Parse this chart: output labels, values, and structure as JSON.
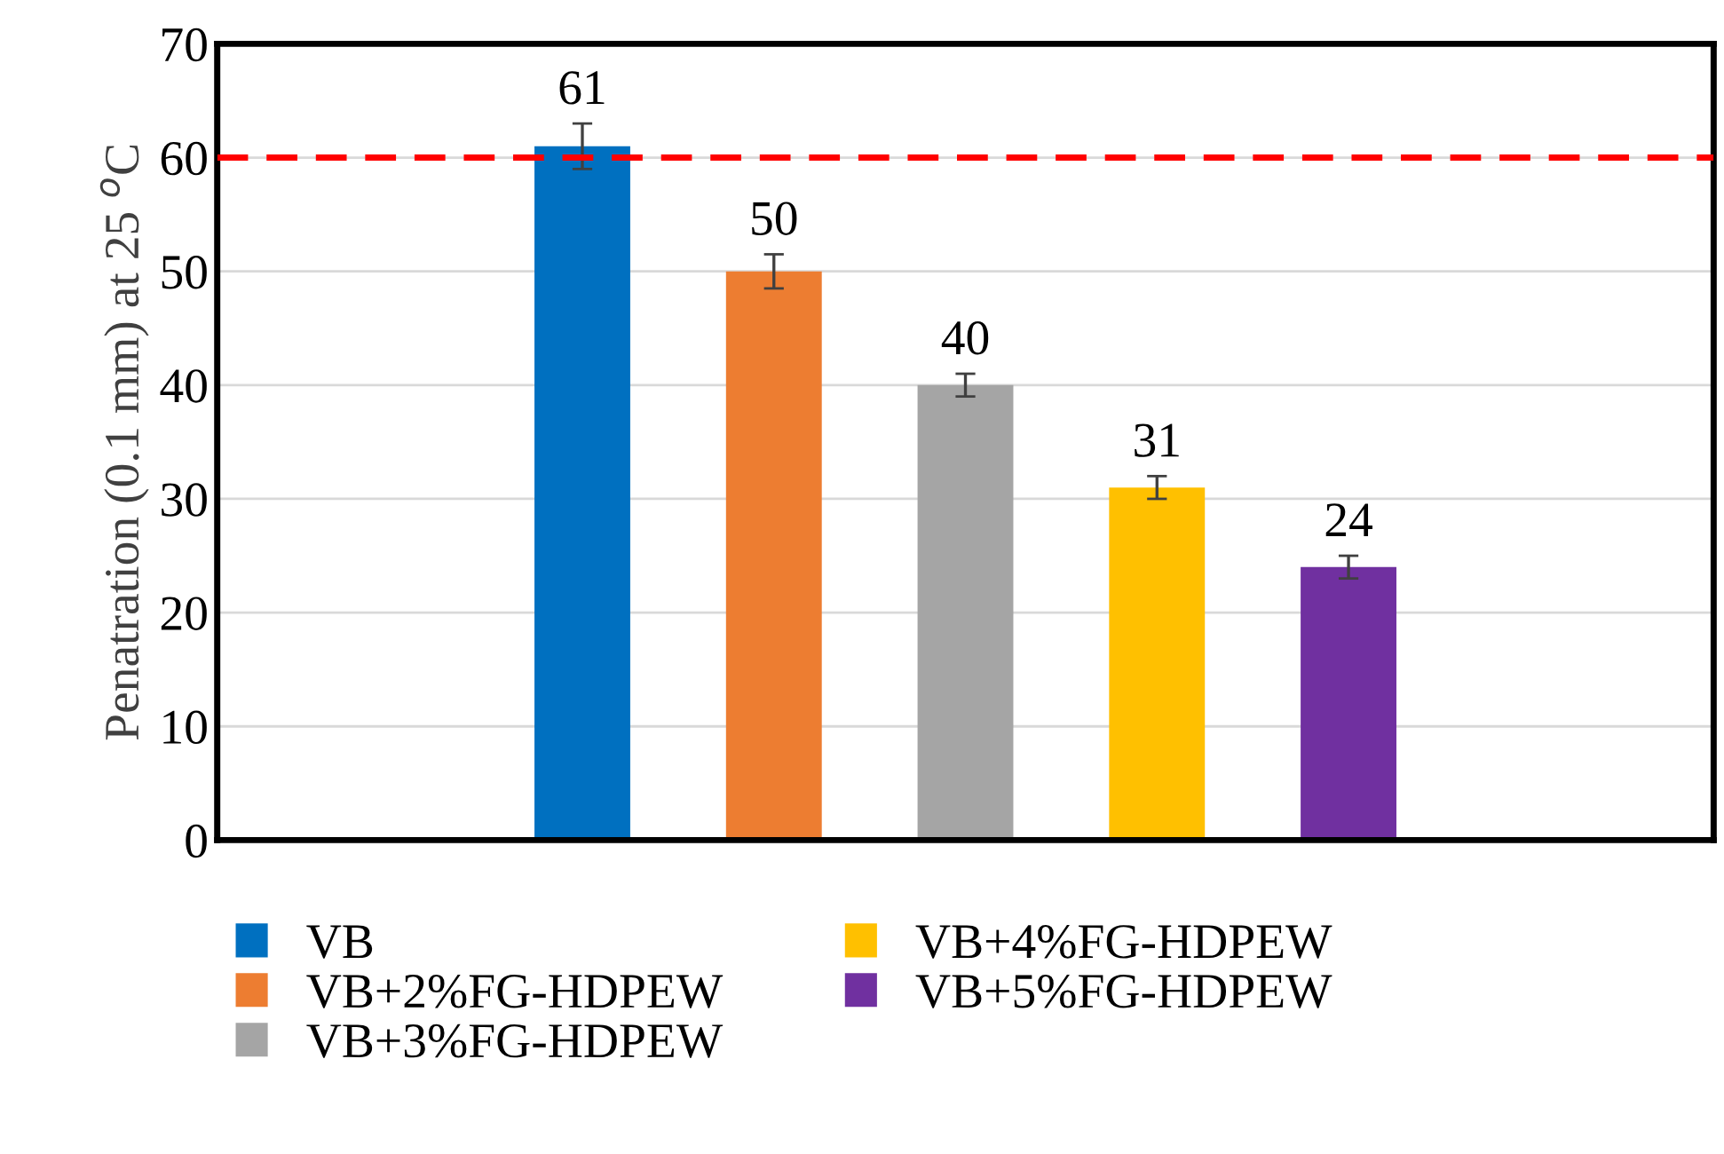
{
  "chart_data": {
    "type": "bar",
    "ylabel": "Penatration (0.1 mm) at 25 $^{o}$C",
    "categories": [
      null
    ],
    "series": [
      {
        "name": "VB",
        "color": "#0070c0",
        "values": [
          61
        ],
        "errors": [
          2
        ]
      },
      {
        "name": "VB+2%FG-HDPEW",
        "color": "#ed7d31",
        "values": [
          50
        ],
        "errors": [
          1.5
        ]
      },
      {
        "name": "VB+3%FG-HDPEW",
        "color": "#a5a5a5",
        "values": [
          40
        ],
        "errors": [
          1
        ]
      },
      {
        "name": "VB+4%FG-HDPEW",
        "color": "#ffc000",
        "values": [
          31
        ],
        "errors": [
          1
        ]
      },
      {
        "name": "VB+5%FG-HDPEW",
        "color": "#7030a0",
        "values": [
          24
        ],
        "errors": [
          1
        ]
      }
    ],
    "ylim": [
      0,
      70
    ],
    "yticks": [
      0,
      10,
      20,
      30,
      40,
      50,
      60,
      70
    ],
    "grid": "y",
    "legend": "bottom",
    "data_labels": true,
    "ref_lines": [
      {
        "axis": "y",
        "value": 60,
        "color": "#ff0000",
        "line_style": "dashed"
      }
    ]
  }
}
